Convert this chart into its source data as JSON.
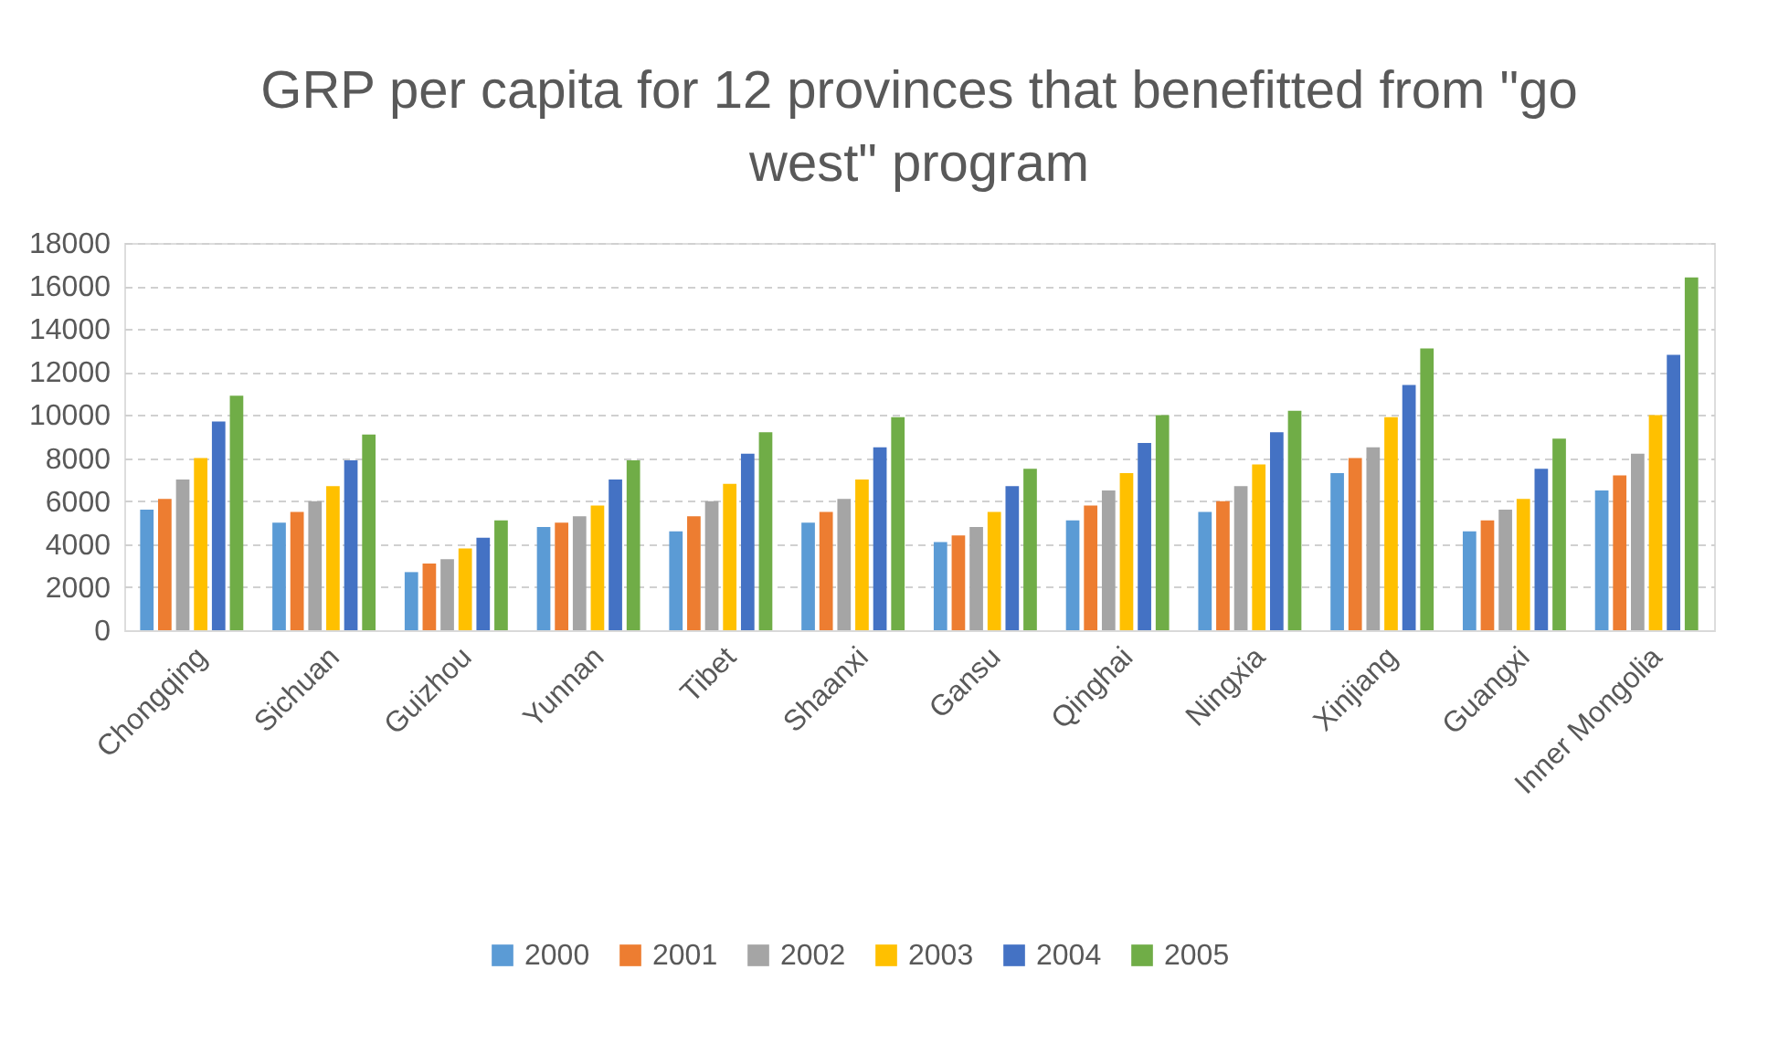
{
  "chart_data": {
    "type": "bar",
    "title": "GRP per capita for 12 provinces that benefitted from \"go west\" program",
    "categories": [
      "Chongqing",
      "Sichuan",
      "Guizhou",
      "Yunnan",
      "Tibet",
      "Shaanxi",
      "Gansu",
      "Qinghai",
      "Ningxia",
      "Xinjiang",
      "Guangxi",
      "Inner Mongolia"
    ],
    "series": [
      {
        "name": "2000",
        "color": "#5b9bd5",
        "values": [
          5600,
          5000,
          2700,
          4800,
          4600,
          5000,
          4100,
          5100,
          5500,
          7300,
          4600,
          6500
        ]
      },
      {
        "name": "2001",
        "color": "#ed7d31",
        "values": [
          6100,
          5500,
          3100,
          5000,
          5300,
          5500,
          4400,
          5800,
          6000,
          8000,
          5100,
          7200
        ]
      },
      {
        "name": "2002",
        "color": "#a5a5a5",
        "values": [
          7000,
          6000,
          3300,
          5300,
          6000,
          6100,
          4800,
          6500,
          6700,
          8500,
          5600,
          8200
        ]
      },
      {
        "name": "2003",
        "color": "#ffc000",
        "values": [
          8000,
          6700,
          3800,
          5800,
          6800,
          7000,
          5500,
          7300,
          7700,
          9900,
          6100,
          10000
        ]
      },
      {
        "name": "2004",
        "color": "#4472c4",
        "values": [
          9700,
          7900,
          4300,
          7000,
          8200,
          8500,
          6700,
          8700,
          9200,
          11400,
          7500,
          12800
        ]
      },
      {
        "name": "2005",
        "color": "#70ad47",
        "values": [
          10900,
          9100,
          5100,
          7900,
          9200,
          9900,
          7500,
          10000,
          10200,
          13100,
          8900,
          16400
        ]
      }
    ],
    "ylim": [
      0,
      18000
    ],
    "yticks": [
      0,
      2000,
      4000,
      6000,
      8000,
      10000,
      12000,
      14000,
      16000,
      18000
    ],
    "grid": "y",
    "legend": "bottom"
  }
}
